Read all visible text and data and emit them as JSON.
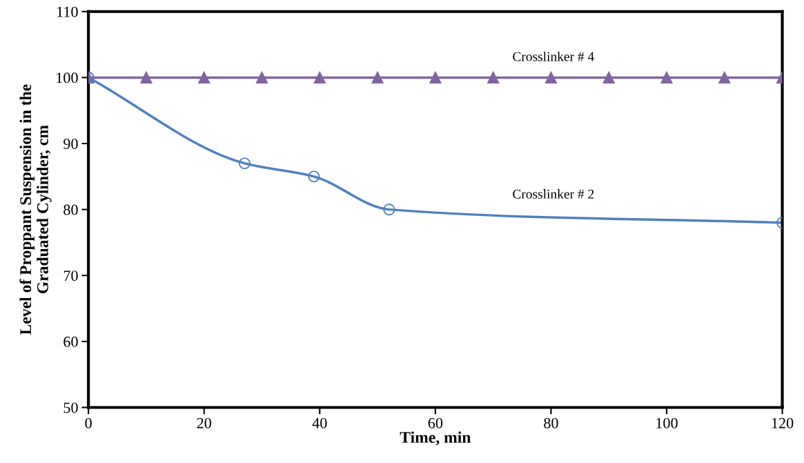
{
  "chart_data": {
    "type": "line",
    "xlabel": "Time, min",
    "ylabel": "Level of Proppant Suspension in the\nGraduated Cylinder, cm",
    "xlim": [
      0,
      120
    ],
    "xticks": [
      0,
      20,
      40,
      60,
      80,
      100,
      120
    ],
    "ylim": [
      50,
      110
    ],
    "yticks": [
      50,
      60,
      70,
      80,
      90,
      100,
      110
    ],
    "grid": false,
    "legend": false,
    "series": [
      {
        "name": "Crosslinker # 4",
        "color": "#8064a2",
        "marker": "triangle",
        "x": [
          0,
          10,
          20,
          30,
          40,
          50,
          60,
          70,
          80,
          90,
          100,
          110,
          120
        ],
        "values": [
          100,
          100,
          100,
          100,
          100,
          100,
          100,
          100,
          100,
          100,
          100,
          100,
          100
        ]
      },
      {
        "name": "Crosslinker # 2",
        "color": "#4f81bd",
        "marker": "circle",
        "x": [
          0,
          27,
          39,
          52,
          120
        ],
        "values": [
          100,
          87,
          85,
          80,
          78
        ]
      }
    ]
  }
}
